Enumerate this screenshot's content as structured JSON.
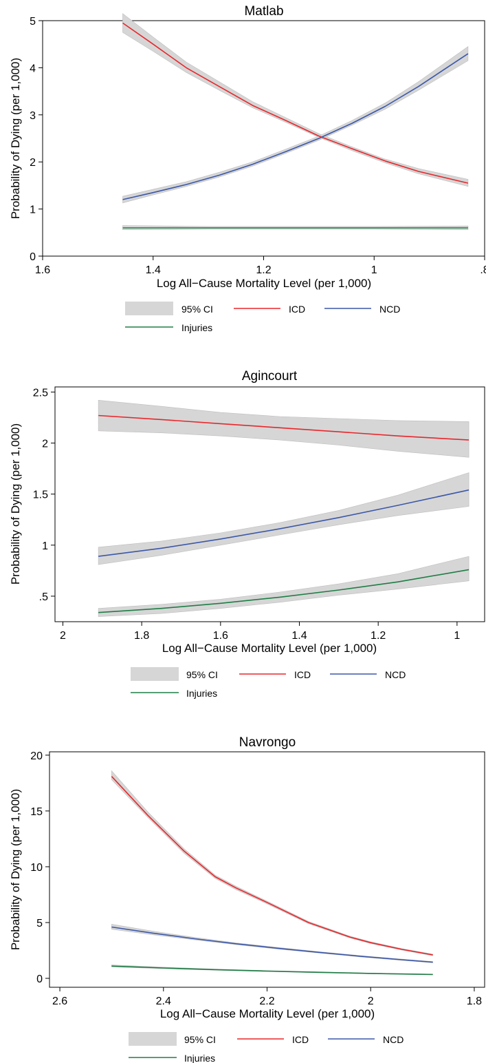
{
  "colors": {
    "ICD": "#e8262a",
    "NCD": "#3b57a8",
    "Injuries": "#1e7d45",
    "ci": "#d6d6d6",
    "ci_edge": "#bdbdbd"
  },
  "chart_data": [
    {
      "type": "line",
      "title": "Matlab",
      "xlabel": "Log All−Cause Mortality Level (per 1,000)",
      "ylabel": "Probability of Dying (per 1,000)",
      "xlim": [
        1.6,
        0.8
      ],
      "ylim": [
        0,
        5
      ],
      "xticks": [
        1.6,
        1.4,
        1.2,
        1,
        0.8
      ],
      "xtick_labels": [
        "1.6",
        "1.4",
        "1.2",
        "1",
        ".8"
      ],
      "yticks": [
        0,
        1,
        2,
        3,
        4,
        5
      ],
      "ytick_labels": [
        "0",
        "1",
        "2",
        "3",
        "4",
        "5"
      ],
      "legend": [
        "95% CI",
        "ICD",
        "NCD",
        "Injuries"
      ],
      "series": [
        {
          "name": "ICD",
          "x": [
            1.455,
            1.4,
            1.34,
            1.28,
            1.22,
            1.16,
            1.1,
            1.04,
            0.98,
            0.92,
            0.83
          ],
          "y": [
            4.95,
            4.5,
            4.0,
            3.6,
            3.2,
            2.88,
            2.55,
            2.28,
            2.02,
            1.8,
            1.55
          ],
          "lo": [
            4.75,
            4.35,
            3.9,
            3.52,
            3.15,
            2.84,
            2.52,
            2.24,
            1.98,
            1.75,
            1.48
          ],
          "hi": [
            5.15,
            4.65,
            4.12,
            3.7,
            3.28,
            2.94,
            2.6,
            2.32,
            2.06,
            1.86,
            1.63
          ]
        },
        {
          "name": "NCD",
          "x": [
            1.455,
            1.4,
            1.34,
            1.28,
            1.22,
            1.16,
            1.1,
            1.04,
            0.98,
            0.92,
            0.83
          ],
          "y": [
            1.2,
            1.35,
            1.52,
            1.72,
            1.95,
            2.22,
            2.5,
            2.82,
            3.18,
            3.6,
            4.3
          ],
          "lo": [
            1.13,
            1.3,
            1.48,
            1.68,
            1.91,
            2.18,
            2.46,
            2.78,
            3.12,
            3.52,
            4.15
          ],
          "hi": [
            1.27,
            1.42,
            1.58,
            1.78,
            2.0,
            2.27,
            2.55,
            2.88,
            3.25,
            3.7,
            4.45
          ]
        },
        {
          "name": "Injuries",
          "x": [
            1.455,
            1.3,
            1.15,
            1.0,
            0.83
          ],
          "y": [
            0.6,
            0.6,
            0.6,
            0.6,
            0.6
          ],
          "lo": [
            0.56,
            0.57,
            0.57,
            0.57,
            0.56
          ],
          "hi": [
            0.65,
            0.63,
            0.63,
            0.63,
            0.64
          ]
        }
      ]
    },
    {
      "type": "line",
      "title": "Agincourt",
      "xlabel": "Log All−Cause Mortality Level (per 1,000)",
      "ylabel": "Probability of Dying (per 1,000)",
      "xlim": [
        2.02,
        0.93
      ],
      "ylim": [
        0.25,
        2.55
      ],
      "xticks": [
        2,
        1.8,
        1.6,
        1.4,
        1.2,
        1
      ],
      "xtick_labels": [
        "2",
        "1.8",
        "1.6",
        "1.4",
        "1.2",
        "1"
      ],
      "yticks": [
        0.5,
        1,
        1.5,
        2,
        2.5
      ],
      "ytick_labels": [
        ".5",
        "1",
        "1.5",
        "2",
        "2.5"
      ],
      "legend": [
        "95% CI",
        "ICD",
        "NCD",
        "Injuries"
      ],
      "series": [
        {
          "name": "ICD",
          "x": [
            1.91,
            1.75,
            1.6,
            1.45,
            1.3,
            1.15,
            0.97
          ],
          "y": [
            2.27,
            2.23,
            2.19,
            2.15,
            2.11,
            2.07,
            2.03
          ],
          "lo": [
            2.12,
            2.1,
            2.07,
            2.03,
            1.98,
            1.92,
            1.86
          ],
          "hi": [
            2.42,
            2.36,
            2.3,
            2.26,
            2.24,
            2.22,
            2.21
          ]
        },
        {
          "name": "NCD",
          "x": [
            1.91,
            1.75,
            1.6,
            1.45,
            1.3,
            1.15,
            0.97
          ],
          "y": [
            0.89,
            0.97,
            1.06,
            1.16,
            1.27,
            1.39,
            1.54
          ],
          "lo": [
            0.81,
            0.9,
            1.0,
            1.1,
            1.2,
            1.29,
            1.38
          ],
          "hi": [
            0.98,
            1.04,
            1.12,
            1.22,
            1.34,
            1.49,
            1.71
          ]
        },
        {
          "name": "Injuries",
          "x": [
            1.91,
            1.75,
            1.6,
            1.45,
            1.3,
            1.15,
            0.97
          ],
          "y": [
            0.34,
            0.38,
            0.43,
            0.49,
            0.56,
            0.64,
            0.76
          ],
          "lo": [
            0.3,
            0.33,
            0.38,
            0.44,
            0.51,
            0.57,
            0.65
          ],
          "hi": [
            0.38,
            0.42,
            0.47,
            0.54,
            0.62,
            0.72,
            0.89
          ]
        }
      ]
    },
    {
      "type": "line",
      "title": "Navrongo",
      "xlabel": "Log All−Cause Mortality Level (per 1,000)",
      "ylabel": "Probability of Dying (per 1,000)",
      "xlim": [
        2.62,
        1.78
      ],
      "ylim": [
        -0.8,
        20.3
      ],
      "xticks": [
        2.6,
        2.4,
        2.2,
        2,
        1.8
      ],
      "xtick_labels": [
        "2.6",
        "2.4",
        "2.2",
        "2",
        "1.8"
      ],
      "yticks": [
        0,
        5,
        10,
        15,
        20
      ],
      "ytick_labels": [
        "0",
        "5",
        "10",
        "15",
        "20"
      ],
      "legend": [
        "95% CI",
        "ICD",
        "NCD",
        "Injuries"
      ],
      "series": [
        {
          "name": "ICD",
          "x": [
            2.5,
            2.43,
            2.36,
            2.3,
            2.26,
            2.2,
            2.12,
            2.04,
            2.0,
            1.94,
            1.88
          ],
          "y": [
            18.1,
            14.6,
            11.4,
            9.1,
            8.1,
            6.8,
            5.0,
            3.7,
            3.2,
            2.6,
            2.1
          ],
          "lo": [
            17.8,
            14.4,
            11.2,
            8.95,
            7.95,
            6.68,
            4.9,
            3.62,
            3.12,
            2.53,
            2.03
          ],
          "hi": [
            18.6,
            14.9,
            11.6,
            9.25,
            8.25,
            6.92,
            5.1,
            3.78,
            3.28,
            2.67,
            2.17
          ]
        },
        {
          "name": "NCD",
          "x": [
            2.5,
            2.42,
            2.34,
            2.26,
            2.18,
            2.1,
            2.02,
            1.94,
            1.88
          ],
          "y": [
            4.6,
            4.05,
            3.55,
            3.1,
            2.7,
            2.33,
            1.98,
            1.67,
            1.45
          ],
          "lo": [
            4.4,
            3.9,
            3.45,
            3.02,
            2.63,
            2.27,
            1.92,
            1.61,
            1.39
          ],
          "hi": [
            4.85,
            4.22,
            3.67,
            3.18,
            2.77,
            2.39,
            2.04,
            1.73,
            1.51
          ]
        },
        {
          "name": "Injuries",
          "x": [
            2.5,
            2.4,
            2.3,
            2.2,
            2.1,
            2.0,
            1.88
          ],
          "y": [
            1.1,
            0.93,
            0.78,
            0.65,
            0.54,
            0.44,
            0.35
          ],
          "lo": [
            1.02,
            0.87,
            0.73,
            0.61,
            0.5,
            0.41,
            0.32
          ],
          "hi": [
            1.2,
            1.0,
            0.83,
            0.69,
            0.58,
            0.47,
            0.38
          ]
        }
      ]
    }
  ]
}
